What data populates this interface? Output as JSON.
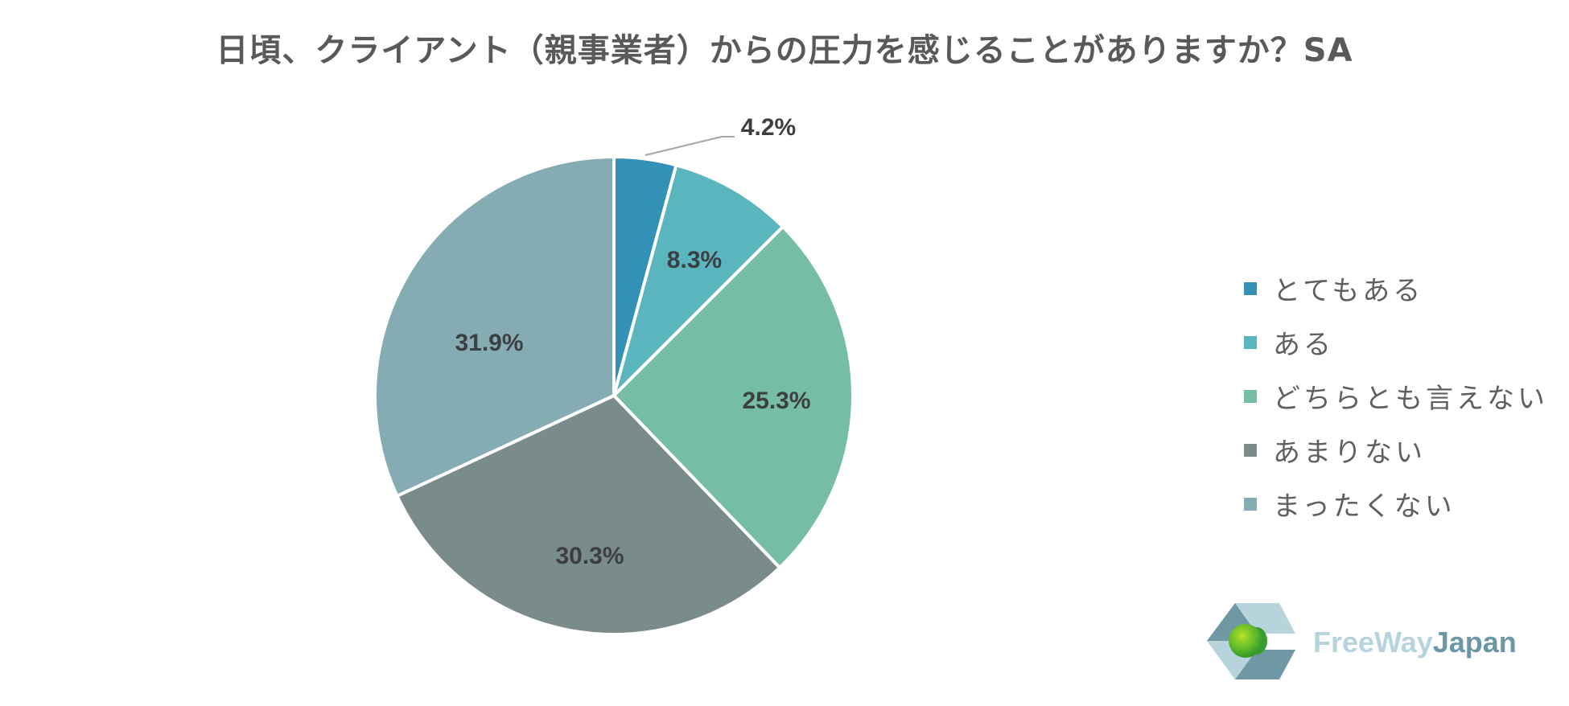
{
  "title": "日頃、クライアント（親事業者）からの圧力を感じることがありますか？SA",
  "chart_data": {
    "type": "pie",
    "title": "日頃、クライアント（親事業者）からの圧力を感じることがありますか？SA",
    "categories": [
      "とてもある",
      "ある",
      "どちらとも言えない",
      "あまりない",
      "まったくない"
    ],
    "values": [
      4.2,
      8.3,
      25.3,
      30.3,
      31.9
    ],
    "labels": [
      "4.2%",
      "8.3%",
      "25.3%",
      "30.3%",
      "31.9%"
    ],
    "colors": [
      "#3391b8",
      "#5ab5bf",
      "#76bda6",
      "#7a8b8c",
      "#85abb3"
    ],
    "start_angle": "12 o'clock, clockwise",
    "legend_position": "right"
  },
  "legend": {
    "items": [
      {
        "label": "とてもある",
        "color": "#3391b8"
      },
      {
        "label": "ある",
        "color": "#5ab5bf"
      },
      {
        "label": "どちらとも言えない",
        "color": "#76bda6"
      },
      {
        "label": "あまりない",
        "color": "#7a8b8c"
      },
      {
        "label": "まったくない",
        "color": "#85abb3"
      }
    ]
  },
  "logo": {
    "text_part1": "FreeWay",
    "text_part2": "Japan"
  }
}
